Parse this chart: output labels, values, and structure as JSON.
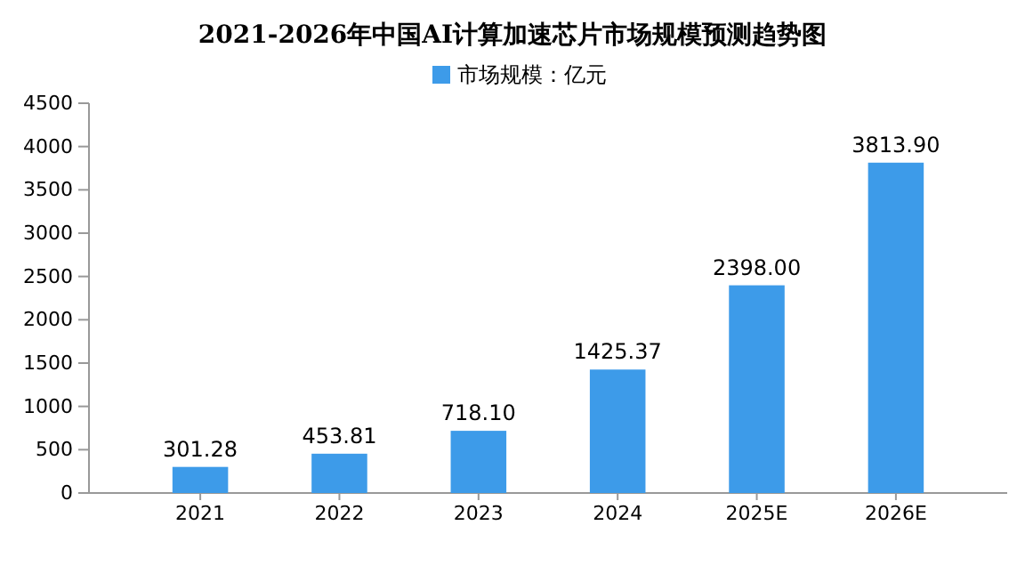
{
  "chart_data": {
    "type": "bar",
    "title": "2021-2026年中国AI计算加速芯片市场规模预测趋势图",
    "categories": [
      "2021",
      "2022",
      "2023",
      "2024",
      "2025E",
      "2026E"
    ],
    "series": [
      {
        "name": "市场规模：亿元",
        "color": "#3d9be9",
        "values": [
          301.28,
          453.81,
          718.1,
          1425.37,
          2398.0,
          3813.9
        ],
        "value_labels": [
          "301.28",
          "453.81",
          "718.10",
          "1425.37",
          "2398.00",
          "3813.90"
        ]
      }
    ],
    "ylim": [
      0,
      4500
    ],
    "yticks": [
      0,
      500,
      1000,
      1500,
      2000,
      2500,
      3000,
      3500,
      4000,
      4500
    ],
    "legend": "top",
    "grid": false
  }
}
